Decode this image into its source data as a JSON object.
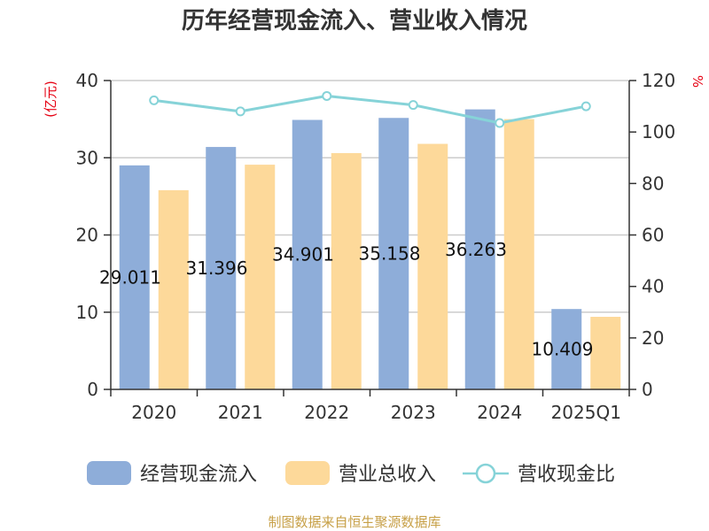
{
  "colors": {
    "cash_bar": "#8eadd9",
    "revenue_bar": "#fdd99a",
    "ratio_line": "#86d3d8",
    "axis": "#333333",
    "grid": "#cccccc",
    "unit_text": "#e60012",
    "source_text": "#c7a047"
  },
  "chart_data": {
    "type": "bar",
    "title": "历年经营现金流入、营业收入情况",
    "categories": [
      "2020",
      "2021",
      "2022",
      "2023",
      "2024",
      "2025Q1"
    ],
    "series": [
      {
        "name": "经营现金流入",
        "type": "bar",
        "axis": "left",
        "values": [
          29.011,
          31.396,
          34.901,
          35.158,
          36.263,
          10.409
        ],
        "labels": [
          "29.011",
          "31.396",
          "34.901",
          "35.158",
          "36.263",
          "10.409"
        ]
      },
      {
        "name": "营业总收入",
        "type": "bar",
        "axis": "left",
        "values": [
          25.8,
          29.1,
          30.6,
          31.8,
          35.0,
          9.4
        ]
      },
      {
        "name": "营收现金比",
        "type": "line",
        "axis": "right",
        "values": [
          112.3,
          108.0,
          114.0,
          110.5,
          103.5,
          110.0
        ]
      }
    ],
    "ylabel_left": "(亿元)",
    "ylabel_right": "%",
    "ylim_left": [
      0,
      40
    ],
    "yticks_left": [
      0,
      10,
      20,
      30,
      40
    ],
    "ylim_right": [
      0,
      120
    ],
    "yticks_right": [
      0,
      20,
      40,
      60,
      80,
      100,
      120
    ],
    "grid": true,
    "legend_position": "bottom"
  },
  "source": "制图数据来自恒生聚源数据库"
}
